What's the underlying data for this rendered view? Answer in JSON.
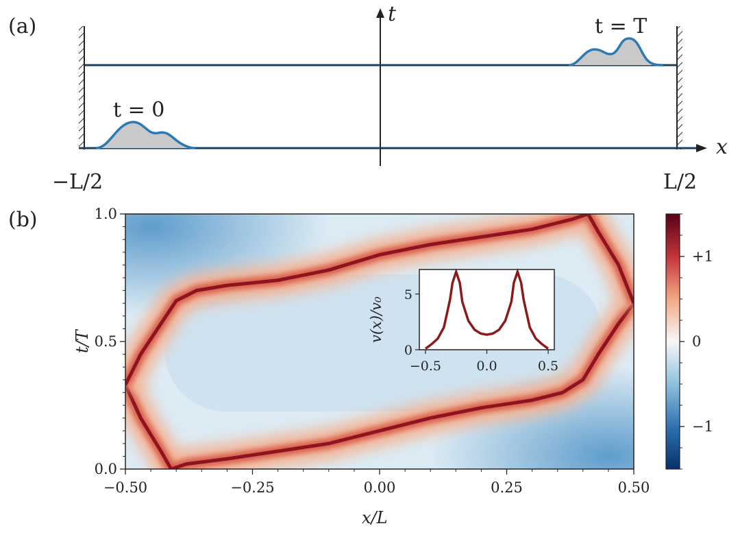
{
  "panel_a": {
    "label": "(a)",
    "t_axis": "t",
    "x_axis": "x",
    "left_wall": "−L/2",
    "right_wall": "L/2",
    "initial_time": "t = 0",
    "final_time": "t = T",
    "wavepacket_color": "#2a7ab5",
    "axis_color": "#1d3f5e"
  },
  "panel_b": {
    "label": "(b)",
    "xlabel": "x/L",
    "ylabel": "t/T",
    "inset_ylabel": "v(x)/v₀",
    "line_color": "#8b1a1a"
  },
  "chart_data": [
    {
      "type": "heatmap",
      "xlabel": "x/L",
      "ylabel": "t/T",
      "xlim": [
        -0.5,
        0.5
      ],
      "ylim": [
        0.0,
        1.0
      ],
      "xticks": [
        "−0.50",
        "−0.25",
        "0.00",
        "0.25",
        "0.50"
      ],
      "xtick_values": [
        -0.5,
        -0.25,
        0.0,
        0.25,
        0.5
      ],
      "yticks": [
        "0.0",
        "0.5",
        "1.0"
      ],
      "ytick_values": [
        0.0,
        0.5,
        1.0
      ],
      "colorbar": {
        "range": [
          -1.5,
          1.5
        ],
        "ticks": [
          "−1",
          "0",
          "+1"
        ],
        "tick_values": [
          -1,
          0,
          1
        ],
        "colormap": "RdBu_r"
      },
      "ridge_curves": [
        {
          "x": [
            -0.5,
            -0.47,
            -0.43,
            -0.41,
            -0.38,
            -0.3,
            -0.2,
            -0.1,
            0.0,
            0.1,
            0.2,
            0.3,
            0.36,
            0.4,
            0.43,
            0.47,
            0.5
          ],
          "y": [
            0.33,
            0.2,
            0.07,
            0.0,
            0.02,
            0.04,
            0.07,
            0.1,
            0.15,
            0.2,
            0.24,
            0.27,
            0.3,
            0.35,
            0.45,
            0.57,
            0.65
          ]
        },
        {
          "x": [
            -0.5,
            -0.47,
            -0.43,
            -0.4,
            -0.36,
            -0.3,
            -0.2,
            -0.1,
            0.0,
            0.1,
            0.2,
            0.3,
            0.38,
            0.41,
            0.43,
            0.47,
            0.5
          ],
          "y": [
            0.33,
            0.45,
            0.57,
            0.66,
            0.7,
            0.72,
            0.74,
            0.78,
            0.84,
            0.88,
            0.91,
            0.94,
            0.98,
            1.0,
            0.93,
            0.8,
            0.65
          ]
        }
      ]
    },
    {
      "type": "line",
      "xlabel": "",
      "ylabel": "v(x)/v₀",
      "xlim": [
        -0.55,
        0.55
      ],
      "ylim": [
        0,
        7.2
      ],
      "xticks": [
        "−0.5",
        "0.0",
        "0.5"
      ],
      "xtick_values": [
        -0.5,
        0.0,
        0.5
      ],
      "yticks": [
        "0",
        "5"
      ],
      "ytick_values": [
        0,
        5
      ],
      "series": [
        {
          "x": [
            -0.5,
            -0.45,
            -0.4,
            -0.35,
            -0.3,
            -0.28,
            -0.25,
            -0.22,
            -0.2,
            -0.15,
            -0.1,
            -0.05,
            0.0,
            0.05,
            0.1,
            0.15,
            0.2,
            0.22,
            0.25,
            0.28,
            0.3,
            0.35,
            0.4,
            0.45,
            0.5
          ],
          "y": [
            0.1,
            0.5,
            1.0,
            2.0,
            4.5,
            6.0,
            7.0,
            6.0,
            4.3,
            2.6,
            1.8,
            1.45,
            1.35,
            1.45,
            1.8,
            2.6,
            4.3,
            6.0,
            7.0,
            6.0,
            4.5,
            2.0,
            1.0,
            0.5,
            0.1
          ]
        }
      ]
    }
  ]
}
